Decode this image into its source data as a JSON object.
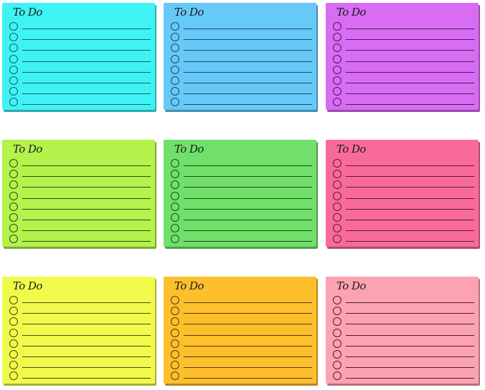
{
  "notes": [
    {
      "title": "To Do",
      "color": "#3ff3f4",
      "line_color": "#1c5e66",
      "items": 8
    },
    {
      "title": "To Do",
      "color": "#66c9f8",
      "line_color": "#1f4a66",
      "items": 8
    },
    {
      "title": "To Do",
      "color": "#d86cf2",
      "line_color": "#4a1a5a",
      "items": 8
    },
    {
      "title": "To Do",
      "color": "#b4f24c",
      "line_color": "#2f4a14",
      "items": 8
    },
    {
      "title": "To Do",
      "color": "#70e06a",
      "line_color": "#1d4a1a",
      "items": 8
    },
    {
      "title": "To Do",
      "color": "#f96a9c",
      "line_color": "#5a1a2a",
      "items": 8
    },
    {
      "title": "To Do",
      "color": "#f0fa4a",
      "line_color": "#4a4a14",
      "items": 8
    },
    {
      "title": "To Do",
      "color": "#fdc02c",
      "line_color": "#5a3a10",
      "items": 8
    },
    {
      "title": "To Do",
      "color": "#fca3b1",
      "line_color": "#5a1a22",
      "items": 8
    }
  ]
}
